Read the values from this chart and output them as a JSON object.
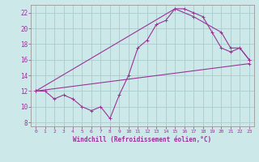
{
  "bg_color": "#cde8e8",
  "line_color": "#993399",
  "grid_color": "#aacccc",
  "xlabel": "Windchill (Refroidissement éolien,°C)",
  "xlim": [
    -0.5,
    23.5
  ],
  "ylim": [
    7.5,
    23.0
  ],
  "yticks": [
    8,
    10,
    12,
    14,
    16,
    18,
    20,
    22
  ],
  "xticks": [
    0,
    1,
    2,
    3,
    4,
    5,
    6,
    7,
    8,
    9,
    10,
    11,
    12,
    13,
    14,
    15,
    16,
    17,
    18,
    19,
    20,
    21,
    22,
    23
  ],
  "line1": {
    "x": [
      0,
      1,
      2,
      3,
      4,
      5,
      6,
      7,
      8,
      9,
      10,
      11,
      12,
      13,
      14,
      15,
      16,
      17,
      18,
      19,
      20,
      21,
      22,
      23
    ],
    "y": [
      12,
      12,
      11,
      11.5,
      11,
      10,
      9.5,
      10,
      8.5,
      11.5,
      14,
      17.5,
      18.5,
      20.5,
      21,
      22.5,
      22.5,
      22,
      21.5,
      19.5,
      17.5,
      17,
      17.5,
      16
    ]
  },
  "line2": {
    "x": [
      0,
      23
    ],
    "y": [
      12,
      15.5
    ]
  },
  "line3": {
    "x": [
      0,
      15,
      17,
      20,
      21,
      22,
      23
    ],
    "y": [
      12,
      22.5,
      21.5,
      19.5,
      17.5,
      17.5,
      16
    ]
  }
}
